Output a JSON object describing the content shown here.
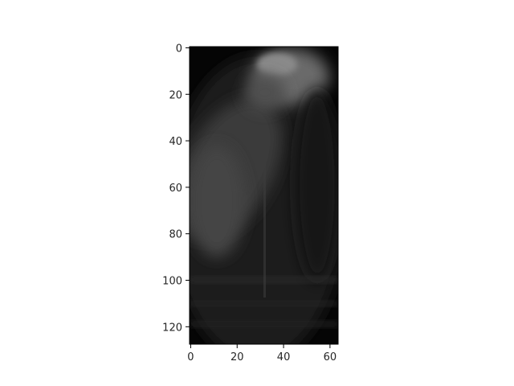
{
  "chart_data": {
    "type": "heatmap",
    "colormap": "gray",
    "title": "",
    "xlabel": "",
    "ylabel": "",
    "x_extent": [
      -0.5,
      63.5
    ],
    "y_extent": [
      127.5,
      -0.5
    ],
    "y_axis_inverted": true,
    "grid": false,
    "xticks": [
      0,
      20,
      40,
      60
    ],
    "yticks": [
      0,
      20,
      40,
      60,
      80,
      100,
      120
    ],
    "image_size": {
      "columns": 64,
      "rows": 128
    },
    "content": "dark grayscale image; brightest region is a rounded blob near top-center-right (x≈35–55, y≈0–25) fading downward along a diagonal band toward left-middle (x≈5–30, y≈40–80); faint vertical streak near x≈32; lower part dim with horizontal texture bands"
  }
}
